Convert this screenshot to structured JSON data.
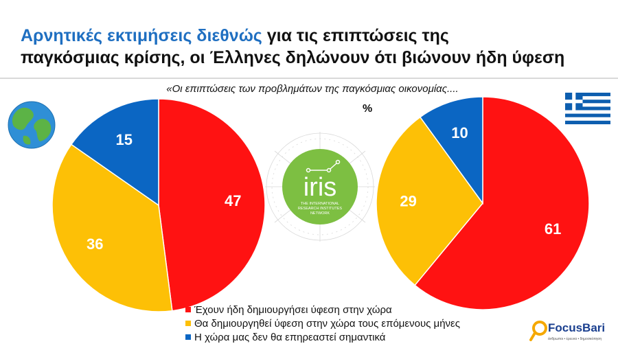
{
  "title": {
    "highlight": "Αρνητικές εκτιμήσεις διεθνώς",
    "rest_line1": " για τις επιπτώσεις της",
    "line2": "παγκόσμιας κρίσης, οι Έλληνες δηλώνουν ότι βιώνουν ήδη ύφεση"
  },
  "subtitle": "«Οι επιπτώσεις των προβλημάτων της παγκόσμιας οικονομίας....",
  "unit": "%",
  "center_logo": {
    "name": "iris",
    "tagline_lines": [
      "THE INTERNATIONAL",
      "RESEARCH INSTITUTES",
      "NETWORK"
    ]
  },
  "brand": {
    "name": "FocusBari",
    "tagline": "άνθρωποι • έρευνα • δημοσκόπηση"
  },
  "colors": {
    "red": "#ff1212",
    "yellow": "#fdc006",
    "blue": "#0b66c3",
    "accent": "#1f6fc1",
    "green": "#7dbf42"
  },
  "icons": {
    "left_chart": "globe-icon",
    "right_chart": "greek-flag-icon"
  },
  "chart_data": [
    {
      "type": "pie",
      "title": "",
      "categories": [
        "Έχουν ήδη δημιουργήσει ύφεση στην χώρα",
        "Θα δημιουργηθεί ύφεση στην χώρα τους επόμενους μήνες",
        "Η χώρα μας δεν θα επηρεαστεί σημαντικά"
      ],
      "values": [
        47,
        36,
        15
      ],
      "colors": [
        "#ff1212",
        "#fdc006",
        "#0b66c3"
      ]
    },
    {
      "type": "pie",
      "title": "",
      "categories": [
        "Έχουν ήδη δημιουργήσει ύφεση στην χώρα",
        "Θα δημιουργηθεί ύφεση στην χώρα τους επόμενους μήνες",
        "Η χώρα μας δεν θα επηρεαστεί σημαντικά"
      ],
      "values": [
        61,
        29,
        10
      ],
      "colors": [
        "#ff1212",
        "#fdc006",
        "#0b66c3"
      ]
    }
  ],
  "legend": [
    {
      "label": "Έχουν ήδη δημιουργήσει ύφεση στην χώρα",
      "color": "#ff1212"
    },
    {
      "label": "Θα δημιουργηθεί ύφεση στην χώρα τους επόμενους μήνες",
      "color": "#fdc006"
    },
    {
      "label": "Η χώρα μας δεν θα επηρεαστεί σημαντικά",
      "color": "#0b66c3"
    }
  ]
}
